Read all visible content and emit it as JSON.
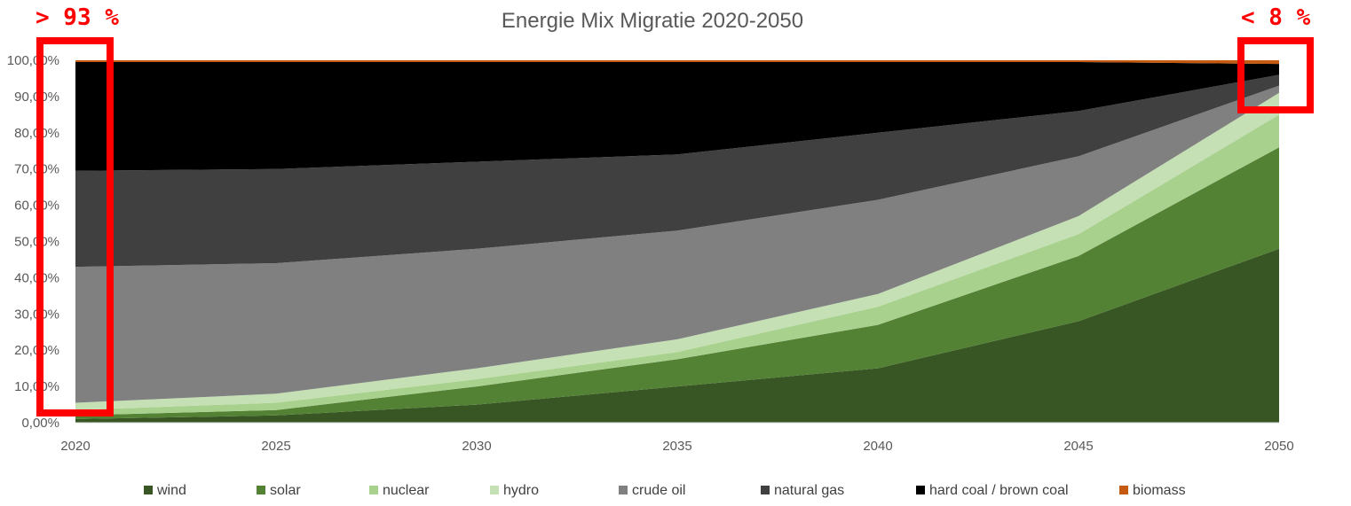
{
  "chart_data": {
    "type": "area",
    "stacked": true,
    "title": "Energie Mix Migratie 2020-2050",
    "x": [
      "2020",
      "2025",
      "2030",
      "2035",
      "2040",
      "2045",
      "2050"
    ],
    "ylim": [
      0,
      100
    ],
    "ytick_labels": [
      "0,00%",
      "10,00%",
      "20,00%",
      "30,00%",
      "40,00%",
      "50,00%",
      "60,00%",
      "70,00%",
      "80,00%",
      "90,00%",
      "100,00%"
    ],
    "grid": false,
    "legend_position": "bottom",
    "series": [
      {
        "name": "wind",
        "color": "#375623",
        "values": [
          1,
          2,
          5,
          10,
          15,
          28,
          48
        ]
      },
      {
        "name": "solar",
        "color": "#548235",
        "values": [
          1,
          1.5,
          5,
          7.5,
          12,
          18,
          28
        ]
      },
      {
        "name": "nuclear",
        "color": "#a9d18e",
        "values": [
          1.5,
          2,
          2,
          2,
          5,
          6,
          9
        ]
      },
      {
        "name": "hydro",
        "color": "#c5e0b4",
        "values": [
          2,
          2.5,
          3,
          3.5,
          3.5,
          5,
          6
        ]
      },
      {
        "name": "crude oil",
        "color": "#808080",
        "values": [
          37.5,
          36,
          33,
          30,
          26,
          16.5,
          2
        ]
      },
      {
        "name": "natural gas",
        "color": "#404040",
        "values": [
          26.5,
          26,
          24,
          21,
          18.5,
          12.5,
          3
        ]
      },
      {
        "name": "hard coal / brown coal",
        "color": "#000000",
        "values": [
          30,
          29.5,
          27.5,
          25.5,
          19.5,
          13.5,
          3
        ]
      },
      {
        "name": "biomass",
        "color": "#c55a11",
        "values": [
          0.5,
          0.5,
          0.5,
          0.5,
          0.5,
          0.5,
          1
        ]
      }
    ],
    "annotations": [
      {
        "text": "> 93 %",
        "anchor_x": "2020",
        "position": "top-left"
      },
      {
        "text": "< 8 %",
        "anchor_x": "2050",
        "position": "top-right"
      }
    ]
  }
}
